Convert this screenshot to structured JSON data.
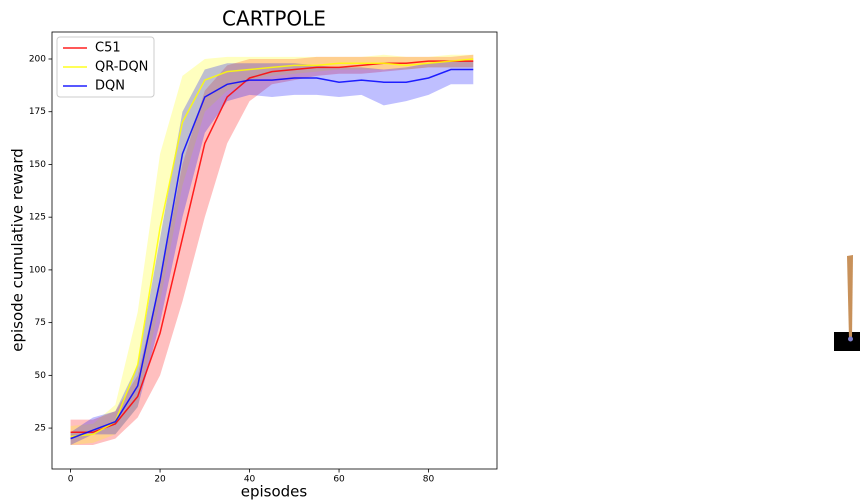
{
  "chart_data": {
    "type": "line",
    "title": "CARTPOLE",
    "x_label": "episodes",
    "y_label": "episode cumulative reward",
    "x": [
      0,
      5,
      10,
      15,
      20,
      25,
      30,
      35,
      40,
      45,
      50,
      55,
      60,
      65,
      70,
      75,
      80,
      85,
      90
    ],
    "series": [
      {
        "name": "C51",
        "color": "#ff0000",
        "values": [
          23,
          23,
          27,
          40,
          70,
          115,
          160,
          182,
          191,
          194,
          195,
          196,
          196,
          197,
          198,
          198,
          199,
          199,
          199
        ],
        "lower": [
          17,
          17,
          20,
          30,
          50,
          85,
          125,
          160,
          180,
          188,
          190,
          192,
          193,
          193,
          194,
          195,
          196,
          196,
          196
        ],
        "upper": [
          29,
          29,
          33,
          50,
          95,
          150,
          185,
          197,
          200,
          200,
          200,
          201,
          201,
          201,
          201,
          201,
          201,
          201,
          202
        ]
      },
      {
        "name": "QR-DQN",
        "color": "#ffff00",
        "values": [
          21,
          22,
          28,
          55,
          120,
          170,
          190,
          194,
          195,
          196,
          197,
          197,
          198,
          198,
          198,
          197,
          198,
          199,
          200
        ],
        "lower": [
          17,
          18,
          22,
          35,
          85,
          140,
          175,
          185,
          190,
          192,
          193,
          194,
          195,
          195,
          195,
          195,
          196,
          196,
          196
        ],
        "upper": [
          26,
          27,
          36,
          80,
          155,
          192,
          200,
          201,
          201,
          201,
          201,
          201,
          201,
          201,
          202,
          201,
          201,
          202,
          202
        ]
      },
      {
        "name": "DQN",
        "color": "#0000ff",
        "values": [
          20,
          24,
          28,
          45,
          95,
          155,
          182,
          188,
          190,
          190,
          191,
          191,
          189,
          190,
          189,
          189,
          191,
          195,
          195
        ],
        "lower": [
          17,
          22,
          22,
          35,
          75,
          125,
          165,
          180,
          183,
          182,
          183,
          183,
          182,
          183,
          178,
          180,
          183,
          188,
          188
        ],
        "upper": [
          23,
          30,
          33,
          55,
          115,
          175,
          195,
          198,
          198,
          198,
          198,
          197,
          196,
          196,
          195,
          196,
          198,
          199,
          199
        ]
      }
    ],
    "xlim": [
      -4.15,
      95.3
    ],
    "ylim": [
      5.6,
      212.8
    ],
    "xticks": [
      0,
      20,
      40,
      60,
      80
    ],
    "yticks": [
      25,
      50,
      75,
      100,
      125,
      150,
      175,
      200
    ],
    "legend": "upper-left",
    "grid": false
  }
}
